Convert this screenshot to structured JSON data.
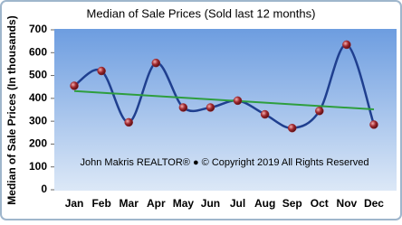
{
  "chart_data": {
    "type": "line",
    "title": "Median of Sale Prices (Sold last 12 months)",
    "y_label": "Median of Sale Prices (In thousands)",
    "annotation": "John Makris REALTOR®  ●  © Copyright 2019 All Rights Reserved",
    "categories": [
      "Jan",
      "Feb",
      "Mar",
      "Apr",
      "May",
      "Jun",
      "Jul",
      "Aug",
      "Sep",
      "Oct",
      "Nov",
      "Dec"
    ],
    "values": [
      455,
      520,
      295,
      555,
      360,
      360,
      390,
      330,
      270,
      345,
      635,
      285
    ],
    "color": "#1f3f8f",
    "marker_color": "#a0282e",
    "trendline": {
      "color": "#2e9e3e",
      "start": 432,
      "end": 352
    },
    "ylim": [
      0,
      700
    ],
    "yticks": [
      0,
      100,
      200,
      300,
      400,
      500,
      600,
      700
    ],
    "grid": false
  }
}
